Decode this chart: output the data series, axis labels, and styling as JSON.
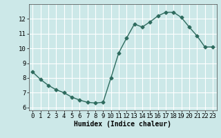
{
  "x": [
    0,
    1,
    2,
    3,
    4,
    5,
    6,
    7,
    8,
    9,
    10,
    11,
    12,
    13,
    14,
    15,
    16,
    17,
    18,
    19,
    20,
    21,
    22,
    23
  ],
  "y": [
    8.4,
    7.9,
    7.5,
    7.2,
    7.0,
    6.7,
    6.5,
    6.35,
    6.3,
    6.35,
    8.0,
    9.7,
    10.7,
    11.65,
    11.45,
    11.8,
    12.2,
    12.45,
    12.45,
    12.1,
    11.45,
    10.85,
    10.1,
    10.1
  ],
  "line_color": "#2e6b5e",
  "marker": "D",
  "marker_size": 2.5,
  "bg_color": "#cce8e8",
  "grid_color": "#ffffff",
  "xlabel": "Humidex (Indice chaleur)",
  "xlim": [
    -0.5,
    23.5
  ],
  "ylim": [
    5.8,
    13.0
  ],
  "yticks": [
    6,
    7,
    8,
    9,
    10,
    11,
    12
  ],
  "xticks": [
    0,
    1,
    2,
    3,
    4,
    5,
    6,
    7,
    8,
    9,
    10,
    11,
    12,
    13,
    14,
    15,
    16,
    17,
    18,
    19,
    20,
    21,
    22,
    23
  ],
  "xlabel_fontsize": 7,
  "tick_fontsize": 6.5,
  "line_width": 1.0
}
